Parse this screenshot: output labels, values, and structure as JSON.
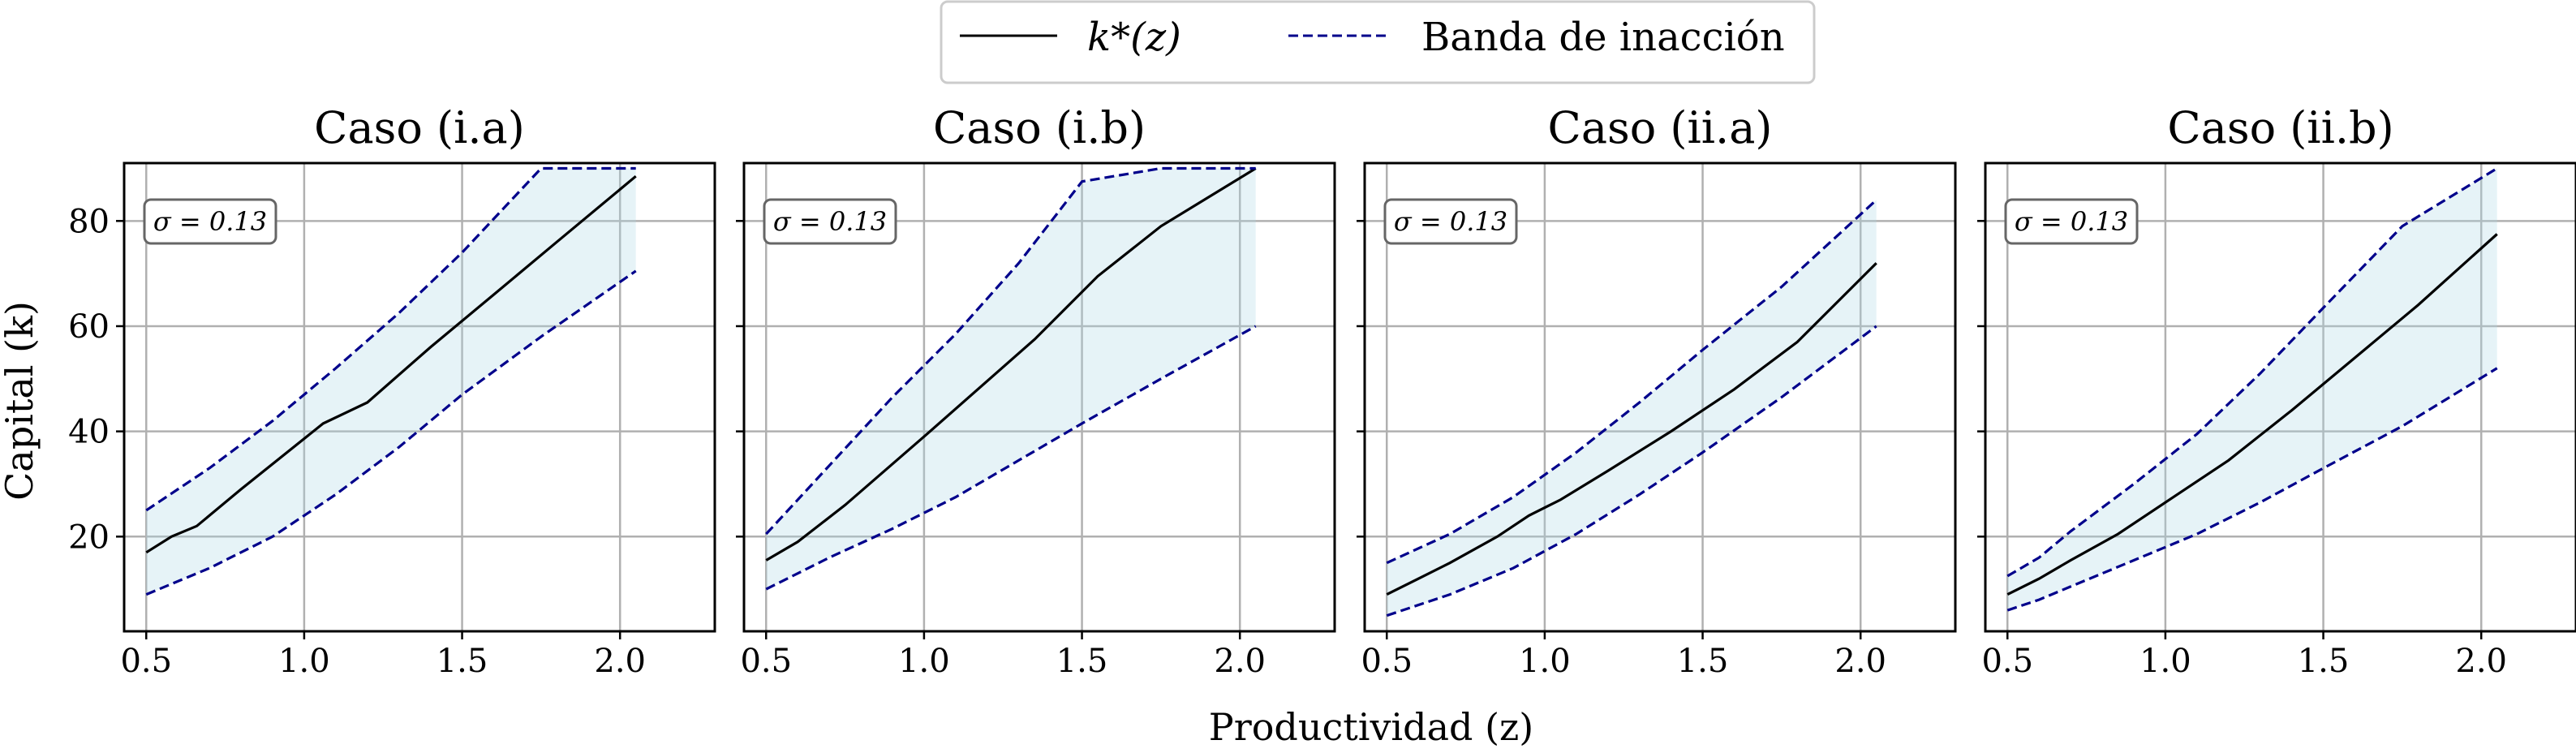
{
  "legend": {
    "items": [
      {
        "label": "k*(z)",
        "style": "solid",
        "color": "#000000"
      },
      {
        "label": "Banda de inacción",
        "style": "dashed",
        "color": "#00008b"
      }
    ],
    "placement": "top-center"
  },
  "xlabel": "Productividad (z)",
  "ylabel": "Capital (k)",
  "colors": {
    "line": "#000000",
    "band_line": "#00008b",
    "band_fill": "#add8e6",
    "grid": "#b0b0b0"
  },
  "chart_data": [
    {
      "type": "line",
      "title": "Caso (i.a)",
      "annotation": "σ = 0.13",
      "xlim": [
        0.43,
        2.3
      ],
      "ylim": [
        2,
        91
      ],
      "xticks": [
        "0.5",
        "1.0",
        "1.5",
        "2.0"
      ],
      "yticks": [
        "20",
        "40",
        "60",
        "80"
      ],
      "grid": true,
      "series": [
        {
          "name": "k*(z)",
          "x": [
            0.5,
            0.58,
            0.66,
            0.8,
            1.06,
            1.2,
            1.4,
            1.6,
            1.8,
            2.05
          ],
          "y": [
            17,
            20,
            22,
            29,
            41.5,
            45.5,
            56,
            66,
            76,
            88.5
          ]
        },
        {
          "name": "Banda de inacción",
          "part": "upper",
          "x": [
            0.5,
            0.7,
            0.9,
            1.1,
            1.3,
            1.5,
            1.75,
            2.05
          ],
          "y": [
            25,
            33,
            42,
            52,
            62.5,
            74,
            90,
            90
          ]
        },
        {
          "name": "Banda de inacción",
          "part": "lower",
          "x": [
            0.5,
            0.7,
            0.9,
            1.1,
            1.3,
            1.5,
            1.75,
            2.05
          ],
          "y": [
            9,
            14,
            20,
            28,
            37,
            47,
            58,
            70.5
          ]
        }
      ]
    },
    {
      "type": "line",
      "title": "Caso (i.b)",
      "annotation": "σ = 0.13",
      "xlim": [
        0.43,
        2.3
      ],
      "ylim": [
        2,
        91
      ],
      "xticks": [
        "0.5",
        "1.0",
        "1.5",
        "2.0"
      ],
      "yticks": [
        "20",
        "40",
        "60",
        "80"
      ],
      "grid": true,
      "series": [
        {
          "name": "k*(z)",
          "x": [
            0.5,
            0.6,
            0.75,
            1.0,
            1.35,
            1.55,
            1.75,
            2.05
          ],
          "y": [
            15.5,
            19,
            26,
            39,
            57.5,
            69.5,
            79,
            90
          ]
        },
        {
          "name": "Banda de inacción",
          "part": "upper",
          "x": [
            0.5,
            0.7,
            0.9,
            1.1,
            1.3,
            1.5,
            1.75,
            2.05
          ],
          "y": [
            20.5,
            33.5,
            46.5,
            58.5,
            72,
            87.5,
            90,
            90
          ]
        },
        {
          "name": "Banda de inacción",
          "part": "lower",
          "x": [
            0.5,
            0.7,
            0.9,
            1.1,
            1.3,
            1.5,
            1.75,
            2.05
          ],
          "y": [
            10,
            16,
            21.5,
            27.5,
            34.5,
            41.5,
            50,
            60
          ]
        }
      ]
    },
    {
      "type": "line",
      "title": "Caso (ii.a)",
      "annotation": "σ = 0.13",
      "xlim": [
        0.43,
        2.3
      ],
      "ylim": [
        2,
        91
      ],
      "xticks": [
        "0.5",
        "1.0",
        "1.5",
        "2.0"
      ],
      "yticks": [
        "20",
        "40",
        "60",
        "80"
      ],
      "grid": true,
      "series": [
        {
          "name": "k*(z)",
          "x": [
            0.5,
            0.6,
            0.7,
            0.85,
            0.95,
            1.05,
            1.2,
            1.4,
            1.6,
            1.8,
            2.05
          ],
          "y": [
            9,
            12,
            15,
            20,
            24,
            27,
            32.5,
            40,
            48,
            57,
            72
          ]
        },
        {
          "name": "Banda de inacción",
          "part": "upper",
          "x": [
            0.5,
            0.7,
            0.9,
            1.1,
            1.3,
            1.5,
            1.75,
            2.05
          ],
          "y": [
            15,
            20.5,
            27.5,
            36,
            45.5,
            55.5,
            67.5,
            84
          ]
        },
        {
          "name": "Banda de inacción",
          "part": "lower",
          "x": [
            0.5,
            0.7,
            0.9,
            1.1,
            1.3,
            1.5,
            1.75,
            2.05
          ],
          "y": [
            5,
            9,
            14,
            20.5,
            28,
            36,
            46.5,
            60
          ]
        }
      ]
    },
    {
      "type": "line",
      "title": "Caso (ii.b)",
      "annotation": "σ = 0.13",
      "xlim": [
        0.43,
        2.3
      ],
      "ylim": [
        2,
        91
      ],
      "xticks": [
        "0.5",
        "1.0",
        "1.5",
        "2.0"
      ],
      "yticks": [
        "20",
        "40",
        "60",
        "80"
      ],
      "grid": true,
      "series": [
        {
          "name": "k*(z)",
          "x": [
            0.5,
            0.6,
            0.7,
            0.85,
            1.0,
            1.2,
            1.4,
            1.6,
            1.8,
            2.05
          ],
          "y": [
            9,
            12,
            15.5,
            20.5,
            26.5,
            34.5,
            44,
            54,
            64,
            77.5
          ]
        },
        {
          "name": "Banda de inacción",
          "part": "upper",
          "x": [
            0.5,
            0.6,
            0.7,
            0.9,
            1.1,
            1.3,
            1.5,
            1.75,
            2.05
          ],
          "y": [
            12.5,
            16,
            21,
            30,
            39.5,
            51,
            63.5,
            79,
            90
          ]
        },
        {
          "name": "Banda de inacción",
          "part": "lower",
          "x": [
            0.5,
            0.6,
            0.7,
            0.9,
            1.1,
            1.3,
            1.5,
            1.75,
            2.05
          ],
          "y": [
            6,
            8,
            10.5,
            15.5,
            20.5,
            26.5,
            33,
            41,
            52
          ]
        }
      ]
    }
  ]
}
